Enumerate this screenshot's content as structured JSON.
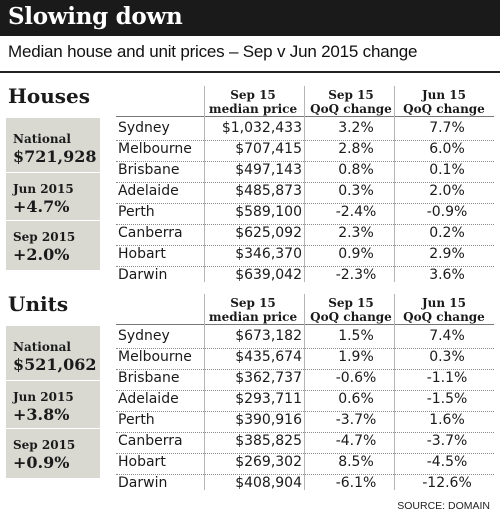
{
  "title": "Slowing down",
  "subtitle": "Median house and unit prices – Sep v Jun 2015 change",
  "source": "SOURCE: DOMAIN",
  "columns": {
    "price_l1": "Sep 15",
    "price_l2": "median price",
    "qoq_sep_l1": "Sep 15",
    "qoq_sep_l2": "QoQ change",
    "qoq_jun_l1": "Jun 15",
    "qoq_jun_l2": "QoQ change"
  },
  "houses": {
    "title": "Houses",
    "sidebar": [
      {
        "label": "National",
        "value": "$721,928"
      },
      {
        "label": "Jun 2015",
        "value": "+4.7%"
      },
      {
        "label": "Sep 2015",
        "value": "+2.0%"
      }
    ],
    "rows": [
      {
        "city": "Sydney",
        "price": "$1,032,433",
        "qoq_sep": "3.2%",
        "qoq_jun": "7.7%"
      },
      {
        "city": "Melbourne",
        "price": "$707,415",
        "qoq_sep": "2.8%",
        "qoq_jun": "6.0%"
      },
      {
        "city": "Brisbane",
        "price": "$497,143",
        "qoq_sep": "0.8%",
        "qoq_jun": "0.1%"
      },
      {
        "city": "Adelaide",
        "price": "$485,873",
        "qoq_sep": "0.3%",
        "qoq_jun": "2.0%"
      },
      {
        "city": "Perth",
        "price": "$589,100",
        "qoq_sep": "-2.4%",
        "qoq_jun": "-0.9%"
      },
      {
        "city": "Canberra",
        "price": "$625,092",
        "qoq_sep": "2.3%",
        "qoq_jun": "0.2%"
      },
      {
        "city": "Hobart",
        "price": "$346,370",
        "qoq_sep": "0.9%",
        "qoq_jun": "2.9%"
      },
      {
        "city": "Darwin",
        "price": "$639,042",
        "qoq_sep": "-2.3%",
        "qoq_jun": "3.6%"
      }
    ]
  },
  "units": {
    "title": "Units",
    "sidebar": [
      {
        "label": "National",
        "value": "$521,062"
      },
      {
        "label": "Jun 2015",
        "value": "+3.8%"
      },
      {
        "label": "Sep 2015",
        "value": "+0.9%"
      }
    ],
    "rows": [
      {
        "city": "Sydney",
        "price": "$673,182",
        "qoq_sep": "1.5%",
        "qoq_jun": "7.4%"
      },
      {
        "city": "Melbourne",
        "price": "$435,674",
        "qoq_sep": "1.9%",
        "qoq_jun": "0.3%"
      },
      {
        "city": "Brisbane",
        "price": "$362,737",
        "qoq_sep": "-0.6%",
        "qoq_jun": "-1.1%"
      },
      {
        "city": "Adelaide",
        "price": "$293,711",
        "qoq_sep": "0.6%",
        "qoq_jun": "-1.5%"
      },
      {
        "city": "Perth",
        "price": "$390,916",
        "qoq_sep": "-3.7%",
        "qoq_jun": "1.6%"
      },
      {
        "city": "Canberra",
        "price": "$385,825",
        "qoq_sep": "-4.7%",
        "qoq_jun": "-3.7%"
      },
      {
        "city": "Hobart",
        "price": "$269,302",
        "qoq_sep": "8.5%",
        "qoq_jun": "-4.5%"
      },
      {
        "city": "Darwin",
        "price": "$408,904",
        "qoq_sep": "-6.1%",
        "qoq_jun": "-12.6%"
      }
    ]
  },
  "chart_data": {
    "type": "table",
    "title": "Slowing down",
    "subtitle": "Median house and unit prices – Sep v Jun 2015 change",
    "columns": [
      "Sep 15 median price",
      "Sep 15 QoQ change",
      "Jun 15 QoQ change"
    ],
    "tables": [
      {
        "name": "Houses",
        "national": "$721,928",
        "jun_2015": "+4.7%",
        "sep_2015": "+2.0%",
        "rows": [
          [
            "Sydney",
            1032433,
            3.2,
            7.7
          ],
          [
            "Melbourne",
            707415,
            2.8,
            6.0
          ],
          [
            "Brisbane",
            497143,
            0.8,
            0.1
          ],
          [
            "Adelaide",
            485873,
            0.3,
            2.0
          ],
          [
            "Perth",
            589100,
            -2.4,
            -0.9
          ],
          [
            "Canberra",
            625092,
            2.3,
            0.2
          ],
          [
            "Hobart",
            346370,
            0.9,
            2.9
          ],
          [
            "Darwin",
            639042,
            -2.3,
            3.6
          ]
        ]
      },
      {
        "name": "Units",
        "national": "$521,062",
        "jun_2015": "+3.8%",
        "sep_2015": "+0.9%",
        "rows": [
          [
            "Sydney",
            673182,
            1.5,
            7.4
          ],
          [
            "Melbourne",
            435674,
            1.9,
            0.3
          ],
          [
            "Brisbane",
            362737,
            -0.6,
            -1.1
          ],
          [
            "Adelaide",
            293711,
            0.6,
            -1.5
          ],
          [
            "Perth",
            390916,
            -3.7,
            1.6
          ],
          [
            "Canberra",
            385825,
            -4.7,
            -3.7
          ],
          [
            "Hobart",
            269302,
            8.5,
            -4.5
          ],
          [
            "Darwin",
            408904,
            -6.1,
            -12.6
          ]
        ]
      }
    ]
  }
}
